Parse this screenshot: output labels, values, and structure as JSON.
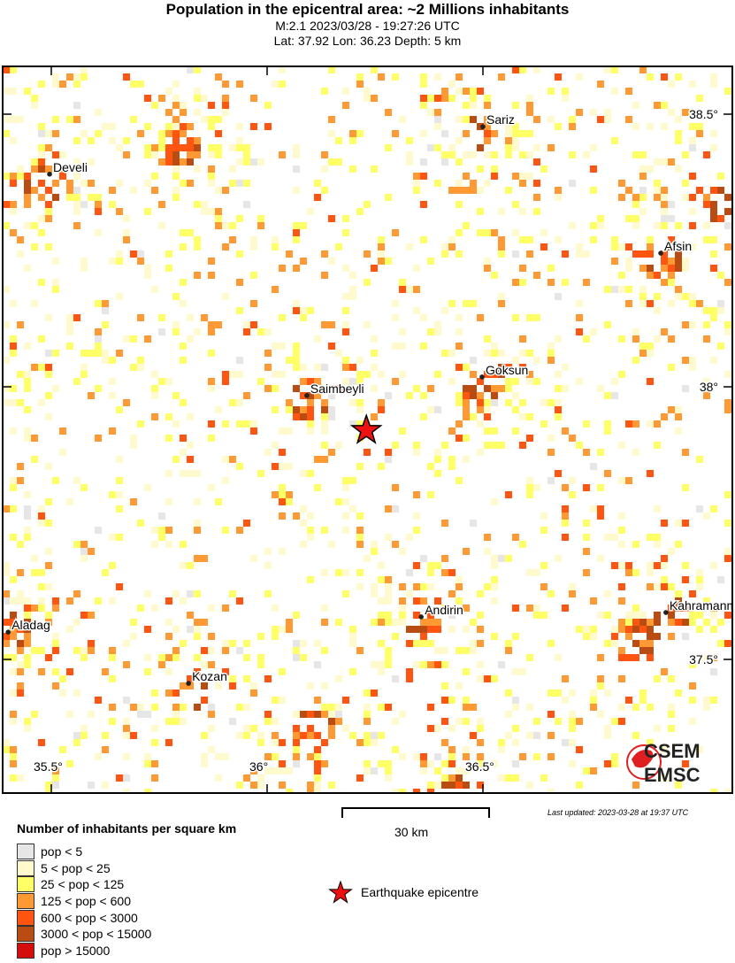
{
  "header": {
    "title": "Population in the epicentral area: ~2 Millions inhabitants",
    "line1": "M:2.1 2023/03/28 - 19:27:26 UTC",
    "line2": "Lat: 37.92 Lon: 36.23 Depth: 5 km"
  },
  "map": {
    "epicenter": {
      "lat": 37.92,
      "lon": 36.23
    },
    "lon_ticks": [
      {
        "v": 35.5,
        "label": "35.5°"
      },
      {
        "v": 36,
        "label": "36°"
      },
      {
        "v": 36.5,
        "label": "36.5°"
      }
    ],
    "lat_ticks": [
      {
        "v": 38.5,
        "label": "38.5°"
      },
      {
        "v": 38,
        "label": "38°"
      },
      {
        "v": 37.5,
        "label": "37.5°"
      }
    ],
    "cities": [
      {
        "name": "Develi",
        "lat": 38.39,
        "lon": 35.496
      },
      {
        "name": "Sariz",
        "lat": 38.477,
        "lon": 36.5
      },
      {
        "name": "Afsin",
        "lat": 38.245,
        "lon": 36.912
      },
      {
        "name": "Goksun",
        "lat": 38.018,
        "lon": 36.498
      },
      {
        "name": "Saimbeyli",
        "lat": 37.984,
        "lon": 36.092
      },
      {
        "name": "Andirin",
        "lat": 37.578,
        "lon": 36.357
      },
      {
        "name": "Kahramanmaras",
        "lat": 37.586,
        "lon": 36.924
      },
      {
        "name": "Aladag",
        "lat": 37.55,
        "lon": 35.4
      },
      {
        "name": "Kozan",
        "lat": 37.456,
        "lon": 35.818
      }
    ],
    "logo": {
      "top": "CSEM",
      "bottom": "EMSC",
      "color": "#e02020"
    }
  },
  "last_updated": "Last updated: 2023-03-28 at 19:37 UTC",
  "scale_label": "30 km",
  "legend": {
    "title": "Number of inhabitants per square km",
    "items": [
      {
        "label": "pop < 5",
        "color": "#e6e6e6"
      },
      {
        "label": "5 < pop < 25",
        "color": "#fffacd"
      },
      {
        "label": "25 < pop < 125",
        "color": "#ffff66"
      },
      {
        "label": "125 < pop < 600",
        "color": "#ff9933"
      },
      {
        "label": "600 < pop < 3000",
        "color": "#ff5511"
      },
      {
        "label": "3000 < pop < 15000",
        "color": "#b84c13"
      },
      {
        "label": "pop > 15000",
        "color": "#d40d0d"
      }
    ],
    "epicentre_label": "Earthquake epicentre",
    "epicentre_color": "#ee1111"
  }
}
